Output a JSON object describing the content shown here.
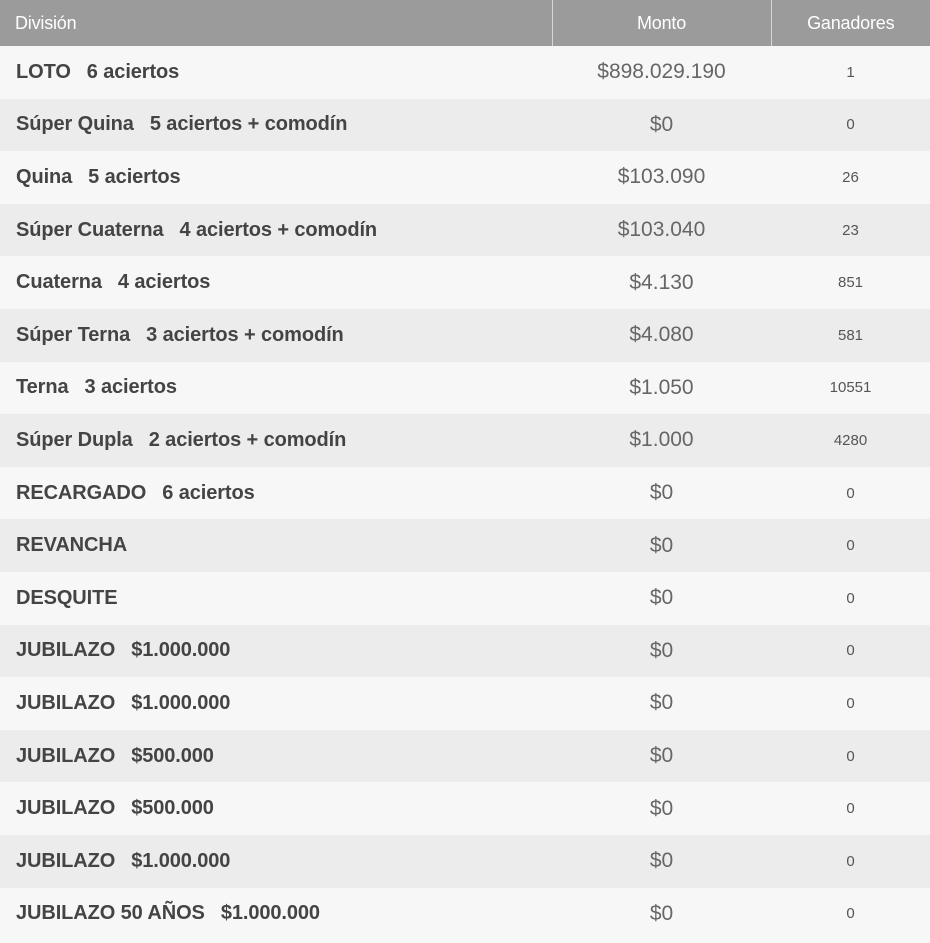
{
  "header": {
    "division": "División",
    "monto": "Monto",
    "ganadores": "Ganadores"
  },
  "rows": [
    {
      "name": "LOTO",
      "detail": "6 aciertos",
      "monto": "$898.029.190",
      "ganadores": "1"
    },
    {
      "name": "Súper Quina",
      "detail": "5 aciertos + comodín",
      "monto": "$0",
      "ganadores": "0"
    },
    {
      "name": "Quina",
      "detail": "5 aciertos",
      "monto": "$103.090",
      "ganadores": "26"
    },
    {
      "name": "Súper Cuaterna",
      "detail": "4 aciertos + comodín",
      "monto": "$103.040",
      "ganadores": "23"
    },
    {
      "name": "Cuaterna",
      "detail": "4 aciertos",
      "monto": "$4.130",
      "ganadores": "851"
    },
    {
      "name": "Súper Terna",
      "detail": "3 aciertos + comodín",
      "monto": "$4.080",
      "ganadores": "581"
    },
    {
      "name": "Terna",
      "detail": "3 aciertos",
      "monto": "$1.050",
      "ganadores": "10551"
    },
    {
      "name": "Súper Dupla",
      "detail": "2 aciertos + comodín",
      "monto": "$1.000",
      "ganadores": "4280"
    },
    {
      "name": "RECARGADO",
      "detail": "6 aciertos",
      "monto": "$0",
      "ganadores": "0"
    },
    {
      "name": "REVANCHA",
      "detail": "",
      "monto": "$0",
      "ganadores": "0"
    },
    {
      "name": "DESQUITE",
      "detail": "",
      "monto": "$0",
      "ganadores": "0"
    },
    {
      "name": "JUBILAZO",
      "detail": "$1.000.000",
      "monto": "$0",
      "ganadores": "0"
    },
    {
      "name": "JUBILAZO",
      "detail": "$1.000.000",
      "monto": "$0",
      "ganadores": "0"
    },
    {
      "name": "JUBILAZO",
      "detail": "$500.000",
      "monto": "$0",
      "ganadores": "0"
    },
    {
      "name": "JUBILAZO",
      "detail": "$500.000",
      "monto": "$0",
      "ganadores": "0"
    },
    {
      "name": "JUBILAZO",
      "detail": "$1.000.000",
      "monto": "$0",
      "ganadores": "0"
    },
    {
      "name": "JUBILAZO 50 AÑOS",
      "detail": "$1.000.000",
      "monto": "$0",
      "ganadores": "0"
    }
  ],
  "colors": {
    "header_bg": "#9b9b9b",
    "row_odd": "#f7f7f7",
    "row_even": "#ececec"
  }
}
